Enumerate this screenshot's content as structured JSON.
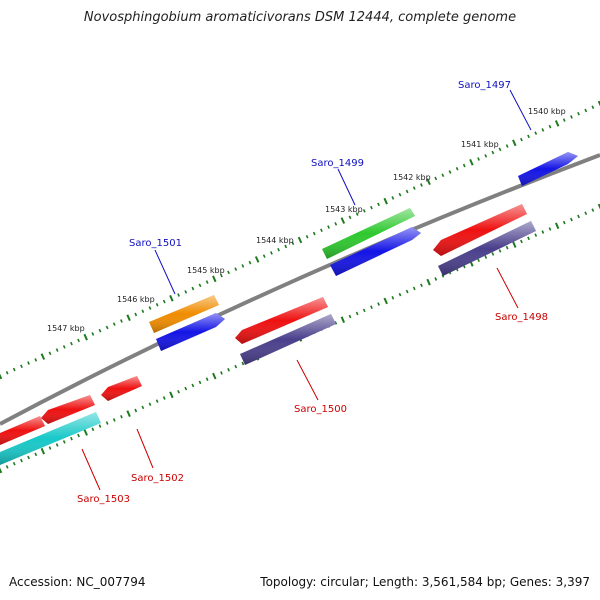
{
  "title": "Novosphingobium aromaticivorans DSM 12444, complete genome",
  "accession": {
    "label": "Accession:",
    "value": "NC_007794"
  },
  "summary": {
    "topology_label": "Topology:",
    "topology": "circular",
    "length_label": "Length:",
    "length": "3,561,584 bp",
    "genes_label": "Genes:",
    "genes": "3,397"
  },
  "colors": {
    "backbone": "#808080",
    "ticks": "#1e7a1e",
    "forward_label": "#1010c0",
    "reverse_label": "#cc0000",
    "red": "#ee1111",
    "blue": "#1414e6",
    "orange": "#f08c00",
    "green": "#2ec82e",
    "slate": "#4a3f8c",
    "cyan": "#18c8c8"
  },
  "kbp_labels": [
    "1540 kbp",
    "1541 kbp",
    "1542 kbp",
    "1543 kbp",
    "1544 kbp",
    "1545 kbp",
    "1546 kbp",
    "1547 kbp"
  ],
  "gene_labels": {
    "forward": [
      "Saro_1497",
      "Saro_1499",
      "Saro_1501"
    ],
    "reverse": [
      "Saro_1498",
      "Saro_1500",
      "Saro_1502",
      "Saro_1503"
    ]
  }
}
